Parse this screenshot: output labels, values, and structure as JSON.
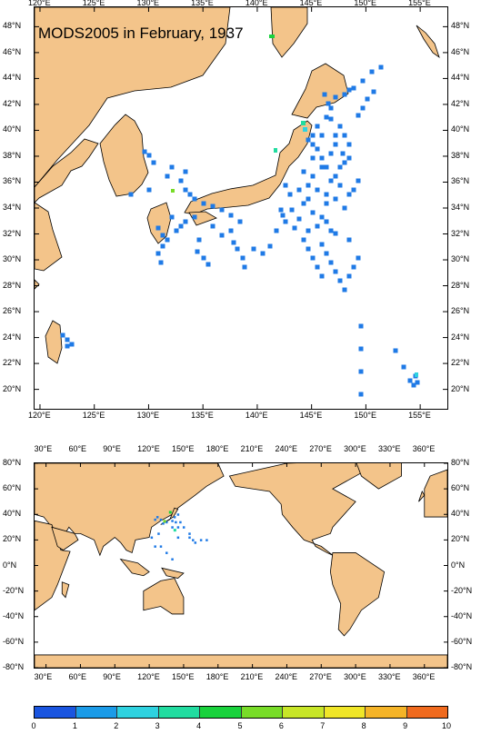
{
  "title": "MODS2005 in February, 1937",
  "colors": {
    "land": "#f3c48a",
    "ocean": "#ffffff",
    "coast": "#000000",
    "obs_default": "#1f7ae6"
  },
  "top_map": {
    "lon_labels": [
      "120°E",
      "125°E",
      "130°E",
      "135°E",
      "140°E",
      "145°E",
      "150°E",
      "155°E"
    ],
    "lat_labels": [
      "48°N",
      "46°N",
      "44°N",
      "42°N",
      "40°N",
      "38°N",
      "36°N",
      "34°N",
      "32°N",
      "30°N",
      "28°N",
      "26°N",
      "24°N",
      "22°N",
      "20°N"
    ],
    "lon_range": [
      119.5,
      157.5
    ],
    "lat_range": [
      18.5,
      49.5
    ]
  },
  "world_map": {
    "lon_labels": [
      "30°E",
      "60°E",
      "90°E",
      "120°E",
      "150°E",
      "180°E",
      "210°E",
      "240°E",
      "270°E",
      "300°E",
      "330°E",
      "360°E"
    ],
    "lat_labels": [
      "80°N",
      "60°N",
      "40°N",
      "20°N",
      "0°N",
      "-20°N",
      "-40°N",
      "-60°N",
      "-80°N"
    ],
    "lon_range": [
      20,
      380
    ],
    "lat_range": [
      -80,
      80
    ]
  },
  "colorbar": {
    "labels": [
      "0",
      "1",
      "2",
      "3",
      "4",
      "5",
      "6",
      "7",
      "8",
      "9",
      "10"
    ],
    "colors": [
      "#1a55e0",
      "#1b9be8",
      "#2fd2e0",
      "#22dca0",
      "#19d23c",
      "#78dc28",
      "#c8e628",
      "#f0e628",
      "#f5b428",
      "#f06a1e"
    ]
  }
}
